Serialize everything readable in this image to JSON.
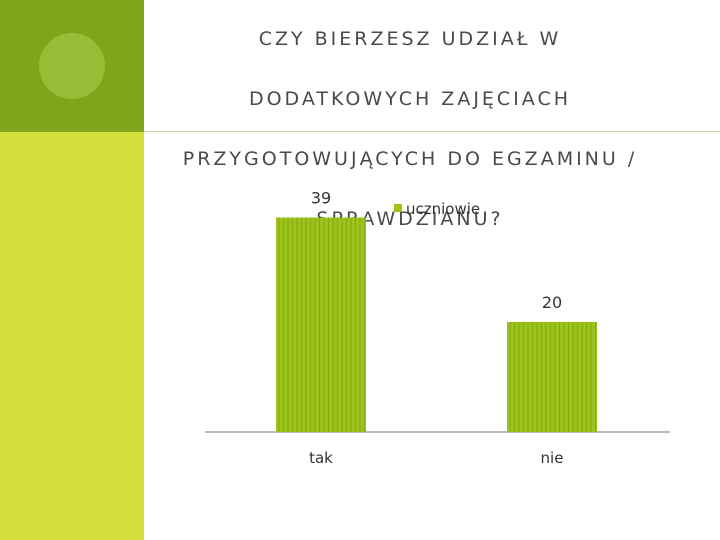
{
  "title_lines": [
    "CZY BIERZESZ UDZIAŁ W",
    "DODATKOWYCH ZAJĘCIACH",
    "PRZYGOTOWUJĄCYCH DO EGZAMINU /",
    "SPRAWDZIANU?"
  ],
  "colors": {
    "sidebar_dark": "#7fa51a",
    "sidebar_light": "#d3e03b",
    "bar": "#9cc31b",
    "bar_stripe": "#86a90f"
  },
  "chart_data": {
    "type": "bar",
    "categories": [
      "tak",
      "nie"
    ],
    "series": [
      {
        "name": "uczniowie",
        "values": [
          39,
          20
        ]
      }
    ],
    "data_labels": [
      "39",
      "20"
    ],
    "ylim": [
      0,
      40
    ],
    "grid": false,
    "legend": "top-right"
  }
}
